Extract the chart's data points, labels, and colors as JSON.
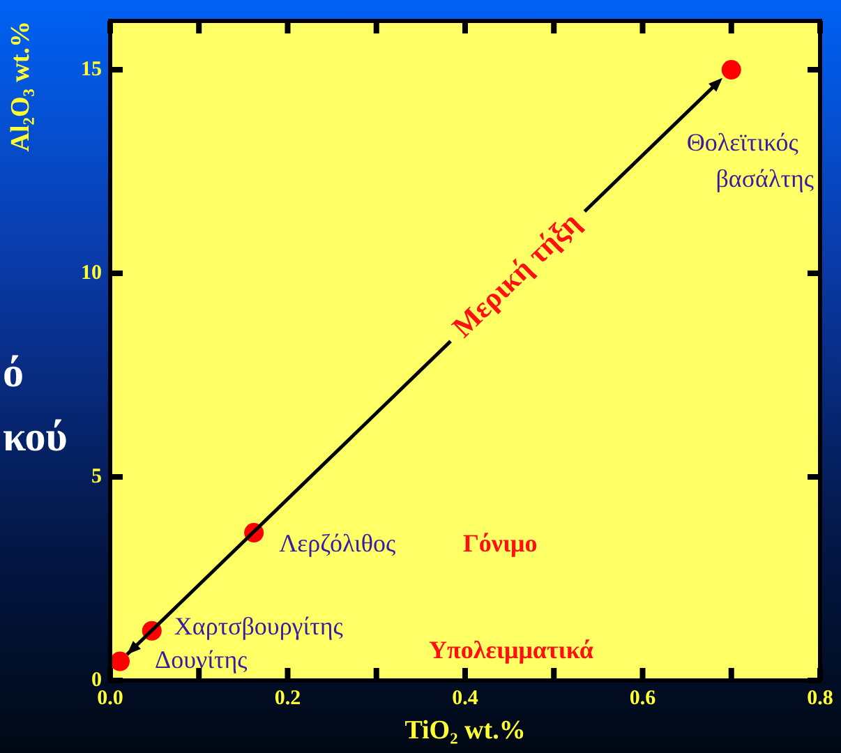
{
  "chart_data": {
    "type": "scatter",
    "xlabel": "TiO₂ wt.%",
    "ylabel": "Al₂O₃ wt.%",
    "x": [
      0.011,
      0.047,
      0.162,
      0.7
    ],
    "values": [
      0.47,
      1.22,
      3.63,
      15
    ],
    "color": "#ff0000",
    "marker": "circle",
    "legend": false,
    "grid": false,
    "xlim": [
      0,
      0.8
    ],
    "ylim": [
      0,
      16.2
    ],
    "xticks": [
      {
        "value": 0,
        "label": "0.0"
      },
      {
        "value": 0.1,
        "label": null
      },
      0.2,
      {
        "value": 0.3,
        "label": null
      },
      0.4,
      {
        "value": 0.5,
        "label": null
      },
      0.6,
      {
        "value": 0.7,
        "label": null
      },
      0.8
    ],
    "yticks": [
      0,
      5,
      10,
      15
    ],
    "annotations": [
      {
        "text": "Δουνίτης",
        "x": 0.011,
        "y": 0.47
      },
      {
        "text": "Χαρτσβουργίτης",
        "x": 0.047,
        "y": 1.22
      },
      {
        "text": "Λερζόλιθος",
        "x": 0.162,
        "y": 3.63
      },
      {
        "text": "Θολεϊτικός βασάλτης",
        "x": 0.7,
        "y": 15
      },
      {
        "text": "Μερική τήξη",
        "x": 0.69,
        "y": 14.8
      },
      "Γόνιμο",
      "Υπολειμματικά",
      "ό",
      "κού"
    ]
  }
}
